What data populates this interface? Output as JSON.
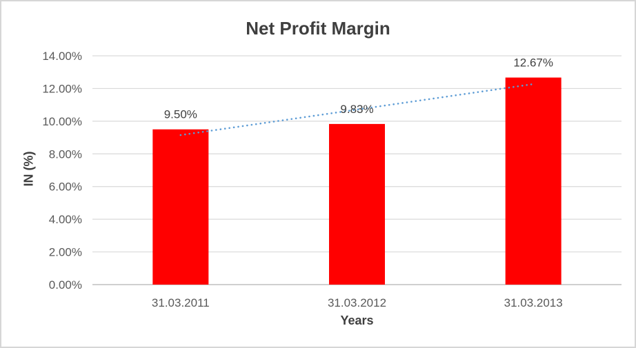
{
  "chart_data": {
    "type": "bar",
    "title": "Net Profit Margin",
    "xlabel": "Years",
    "ylabel": "IN (%)",
    "categories": [
      "31.03.2011",
      "31.03.2012",
      "31.03.2013"
    ],
    "series": [
      {
        "name": "Net Profit Margin",
        "values": [
          9.5,
          9.83,
          12.67
        ]
      }
    ],
    "data_labels": [
      "9.50%",
      "9.83%",
      "12.67%"
    ],
    "y_ticks": [
      "0.00%",
      "2.00%",
      "4.00%",
      "6.00%",
      "8.00%",
      "10.00%",
      "12.00%",
      "14.00%"
    ],
    "ylim": [
      0,
      14
    ],
    "y_tick_step": 2,
    "grid": true,
    "legend_position": "none",
    "bar_color": "#ff0000",
    "trendline": {
      "type": "linear",
      "style": "dotted",
      "color": "#5b9bd5",
      "start_value": 9.15,
      "end_value": 12.27
    },
    "colors": {
      "title_text": "#3f3f3f",
      "tick_label_text": "#595959",
      "axis_title_text": "#3f3f3f",
      "data_label_text": "#404040",
      "gridline": "#d9d9d9",
      "axis_line": "#bfbfbf",
      "frame_border": "#d6d6d6",
      "background": "#ffffff"
    }
  }
}
